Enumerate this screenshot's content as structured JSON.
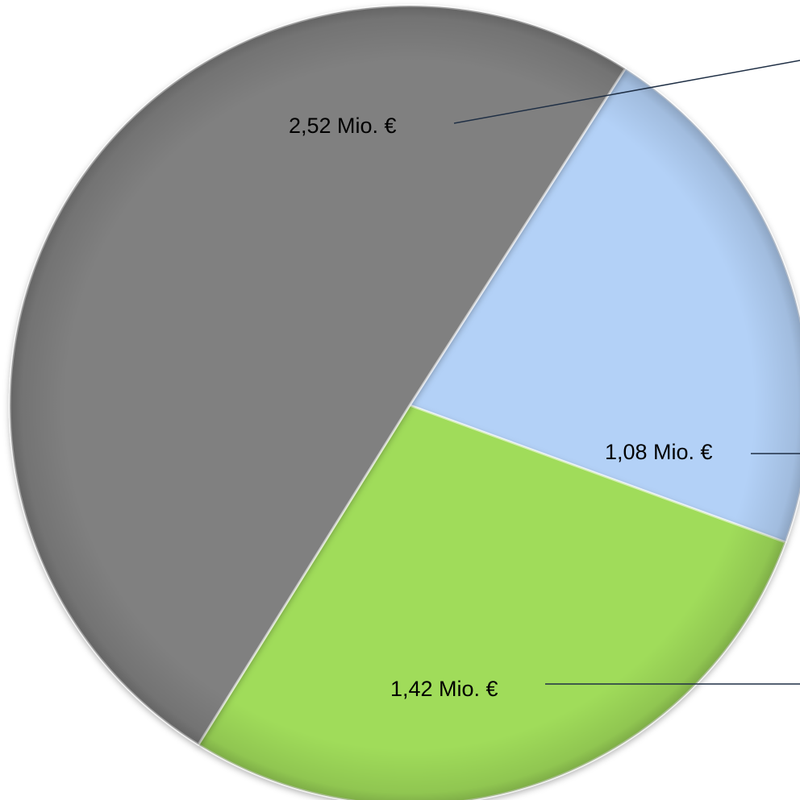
{
  "chart_data": {
    "type": "pie",
    "title": "",
    "slices": [
      {
        "value": 1.08,
        "label": "1,08 Mio. €",
        "color": "#b3d1f7"
      },
      {
        "value": 1.42,
        "label": "1,42 Mio. €",
        "color": "#a0dc5a"
      },
      {
        "value": 2.52,
        "label": "2,52 Mio. €",
        "color": "#808080"
      }
    ],
    "unit": "Mio. €",
    "start_angle_deg": 32.6,
    "direction": "clockwise",
    "legend": "none",
    "colors": {
      "background": "#ffffff",
      "leader_line": "#1f2f45",
      "label_text": "#000000"
    }
  }
}
